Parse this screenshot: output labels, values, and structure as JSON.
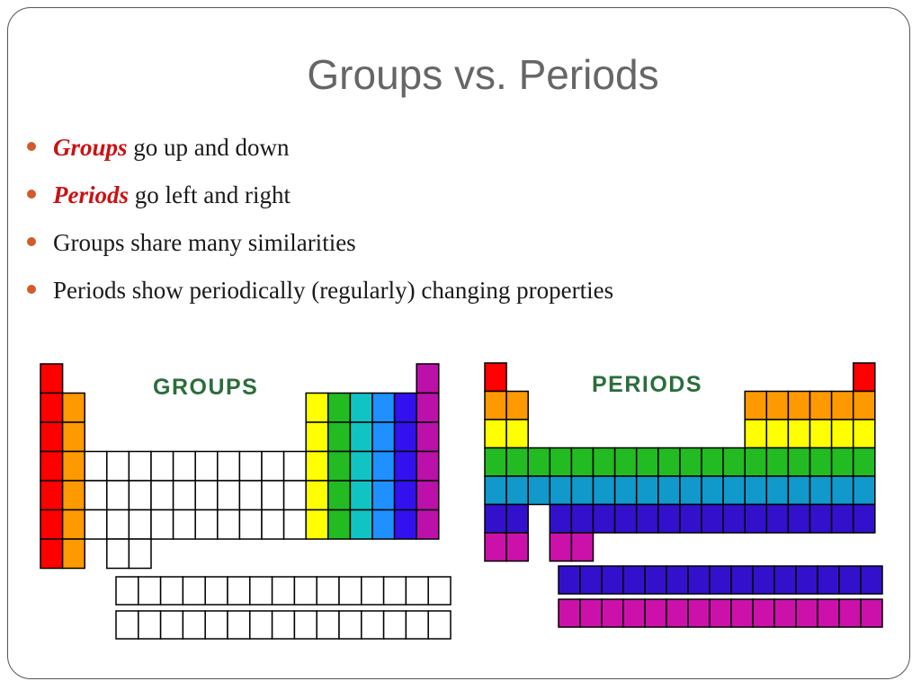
{
  "slide": {
    "title": "Groups vs. Periods",
    "bullets": [
      {
        "emphasis": "Groups",
        "text": " go up and down"
      },
      {
        "emphasis": "Periods",
        "text": " go left and right"
      },
      {
        "emphasis": "",
        "text": "Groups share many similarities"
      },
      {
        "emphasis": "",
        "text": "Periods show periodically (regularly) changing properties"
      }
    ],
    "bullet_color": "#d35b2a",
    "emphasis_color": "#cc1111"
  },
  "diagrams": {
    "groups": {
      "label": "GROUPS",
      "label_color": "#2a6e3a",
      "group_colors": [
        "#ff0000",
        "#ff9900",
        "#ffff00",
        "#22bb22",
        "#11c4c4",
        "#1e90ff",
        "#3311ee",
        "#bb11aa"
      ]
    },
    "periods": {
      "label": "PERIODS",
      "label_color": "#2a6e3a",
      "period_colors": [
        "#ff0000",
        "#ff9900",
        "#ffff00",
        "#22bb22",
        "#1199cc",
        "#3311cc",
        "#cc11aa"
      ]
    }
  }
}
